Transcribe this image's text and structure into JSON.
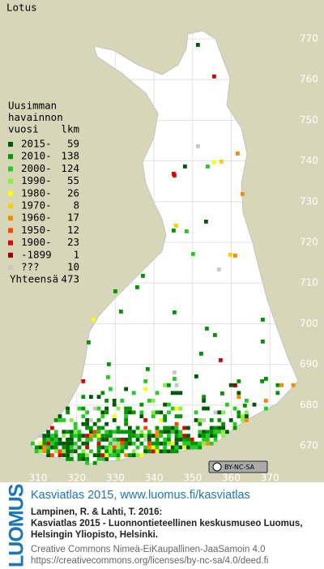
{
  "title": "Lotus",
  "legend": {
    "heading": [
      "Uusimman",
      "havainnon",
      "vuosi"
    ],
    "count_heading": "lkm",
    "rows": [
      {
        "label": "2015-",
        "count": 59,
        "color": "#005a00"
      },
      {
        "label": "2010-",
        "count": 138,
        "color": "#009600"
      },
      {
        "label": "2000-",
        "count": 124,
        "color": "#22cc22"
      },
      {
        "label": "1990-",
        "count": 55,
        "color": "#88ee44"
      },
      {
        "label": "1980-",
        "count": 26,
        "color": "#ffff00"
      },
      {
        "label": "1970-",
        "count": 8,
        "color": "#ffcc00"
      },
      {
        "label": "1960-",
        "count": 17,
        "color": "#ff8800"
      },
      {
        "label": "1950-",
        "count": 12,
        "color": "#ff4400"
      },
      {
        "label": "1900-",
        "count": 23,
        "color": "#dd0000"
      },
      {
        "label": "-1899",
        "count": 1,
        "color": "#990000"
      },
      {
        "label": "???",
        "count": 10,
        "color": "#c8c8c8"
      }
    ],
    "total_label": "Yhteensä",
    "total": 473
  },
  "x_axis": [
    310,
    320,
    330,
    340,
    350,
    360,
    370
  ],
  "y_axis": [
    670,
    680,
    690,
    700,
    710,
    720,
    730,
    740,
    750,
    760,
    770
  ],
  "license_badge": "BY-NC-SA",
  "footer": {
    "logo": "LUOMUS",
    "headline": "Kasviatlas 2015, www.luomus.fi/kasviatlas",
    "citation": [
      "Lampinen, R. & Lahti, T. 2016:",
      "Kasviatlas 2015 - Luonnontieteellinen keskusmuseo Luomus,",
      "Helsingin Yliopisto, Helsinki."
    ],
    "license": [
      "Creative Commons Nimeä-EiKaupallinen-JaaSamoin 4.0",
      "https://creativecommons.org/licenses/by-nc-sa/4.0/deed.fi"
    ]
  }
}
